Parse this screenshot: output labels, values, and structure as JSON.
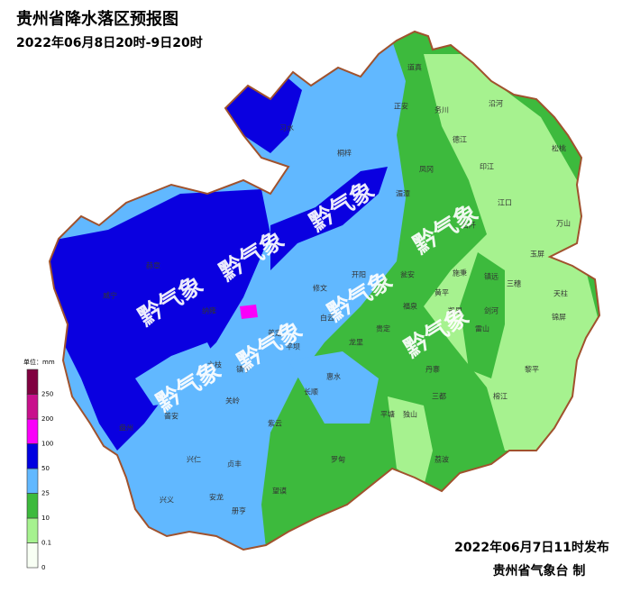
{
  "header": {
    "title": "贵州省降水落区预报图",
    "subtitle": "2022年06月8日20时-9日20时"
  },
  "watermark": "黔气象",
  "legend": {
    "unit": "单位：mm",
    "levels": [
      0,
      0.1,
      10,
      25,
      50,
      100,
      200,
      250
    ],
    "colors": [
      "#f8fff4",
      "#a6f28f",
      "#3dba3d",
      "#61b8ff",
      "#0000e1",
      "#fa00fa",
      "#c8108c",
      "#800040"
    ]
  },
  "places": [
    "道真",
    "正安",
    "务川",
    "沿河",
    "习水",
    "桐梓",
    "湄潭",
    "凤冈",
    "德江",
    "印江",
    "松桃",
    "江口",
    "万山",
    "石阡",
    "玉屏",
    "天柱",
    "三穗",
    "镇远",
    "施秉",
    "黄平",
    "剑河",
    "锦屏",
    "凯里",
    "雷山",
    "黎平",
    "榕江",
    "丹寨",
    "三都",
    "独山",
    "平塘",
    "荔波",
    "福泉",
    "瓮安",
    "开阳",
    "修文",
    "白云",
    "龙里",
    "贵定",
    "惠水",
    "长顺",
    "罗甸",
    "紫云",
    "镇宁",
    "关岭",
    "普定",
    "平坝",
    "纳雍",
    "赫章",
    "威宁",
    "六枝",
    "盘州",
    "普安",
    "兴仁",
    "贞丰",
    "望谟",
    "册亨",
    "安龙",
    "兴义"
  ],
  "footer": {
    "issued": "2022年06月7日11时发布",
    "maker": "贵州省气象台 制"
  }
}
